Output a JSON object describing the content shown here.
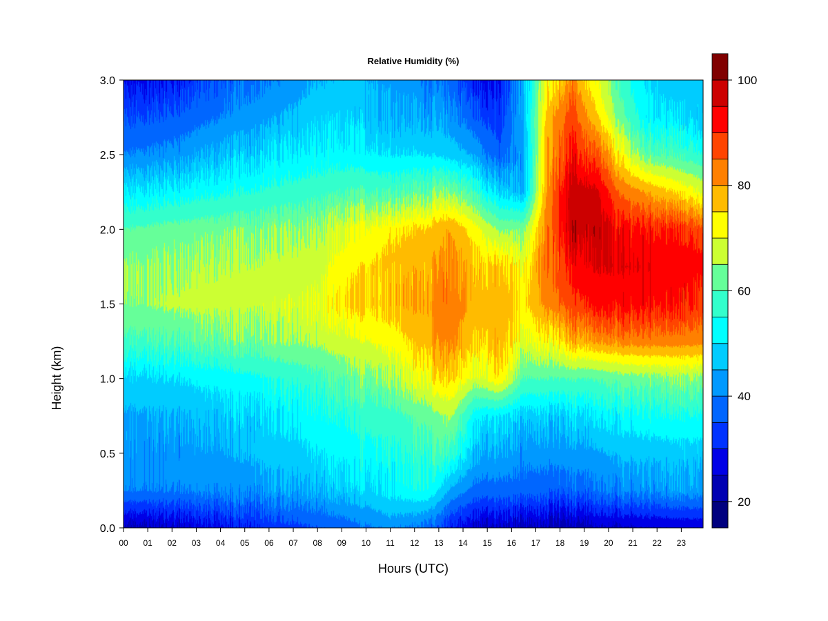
{
  "chart_data": {
    "type": "heatmap",
    "title": "Relative Humidity (%)",
    "xlabel": "Hours (UTC)",
    "ylabel": "Height (km)",
    "x_tick_labels": [
      "00",
      "01",
      "02",
      "03",
      "04",
      "05",
      "06",
      "07",
      "08",
      "09",
      "10",
      "11",
      "12",
      "13",
      "14",
      "15",
      "16",
      "17",
      "18",
      "19",
      "20",
      "21",
      "22",
      "23"
    ],
    "y_tick_labels": [
      "0.0",
      "0.5",
      "1.0",
      "1.5",
      "2.0",
      "2.5",
      "3.0"
    ],
    "xlim": [
      0,
      23.9
    ],
    "ylim": [
      0,
      3.0
    ],
    "colorbar": {
      "range": [
        15,
        100
      ],
      "tick_labels": [
        "20",
        "40",
        "60",
        "80",
        "100"
      ],
      "levels": [
        15,
        20,
        25,
        30,
        35,
        40,
        45,
        50,
        55,
        60,
        65,
        70,
        75,
        80,
        85,
        90,
        95,
        100
      ],
      "colors": [
        "#00007F",
        "#0000B2",
        "#0000E6",
        "#0033FF",
        "#0066FF",
        "#0099FF",
        "#00CCFF",
        "#00FFFF",
        "#33FFCC",
        "#66FF99",
        "#CCFF33",
        "#FFFF00",
        "#FFBB00",
        "#FF8000",
        "#FF4400",
        "#FF0000",
        "#CC0000",
        "#800000"
      ]
    },
    "heights_km": [
      0.0,
      0.25,
      0.5,
      0.75,
      1.0,
      1.25,
      1.5,
      1.75,
      2.0,
      2.25,
      2.5,
      2.75,
      3.0
    ],
    "hours_utc": [
      0,
      2,
      4,
      6,
      8,
      9.5,
      11,
      12.5,
      13.5,
      14.5,
      15.5,
      16.5,
      17.5,
      18.5,
      19.5,
      20.5,
      21.5,
      23.9
    ],
    "rh_percent": [
      [
        22,
        25,
        28,
        32,
        35,
        38,
        42,
        38,
        30,
        25,
        24,
        24,
        23,
        22,
        24,
        24,
        25,
        26
      ],
      [
        40,
        40,
        41,
        43,
        45,
        48,
        52,
        55,
        44,
        38,
        38,
        38,
        37,
        37,
        38,
        40,
        42,
        44
      ],
      [
        42,
        42,
        44,
        47,
        50,
        53,
        55,
        58,
        58,
        46,
        44,
        42,
        42,
        43,
        44,
        46,
        47,
        48
      ],
      [
        44,
        45,
        47,
        50,
        53,
        56,
        58,
        62,
        66,
        52,
        50,
        48,
        48,
        49,
        50,
        52,
        54,
        55
      ],
      [
        48,
        50,
        52,
        55,
        58,
        62,
        66,
        72,
        76,
        68,
        74,
        60,
        60,
        60,
        60,
        62,
        63,
        65
      ],
      [
        58,
        60,
        62,
        64,
        66,
        69,
        72,
        78,
        82,
        75,
        78,
        70,
        72,
        78,
        80,
        82,
        83,
        82
      ],
      [
        64,
        66,
        67,
        68,
        70,
        75,
        78,
        80,
        84,
        78,
        78,
        74,
        82,
        88,
        92,
        92,
        93,
        90
      ],
      [
        64,
        65,
        66,
        67,
        68,
        74,
        77,
        78,
        82,
        77,
        76,
        72,
        84,
        92,
        95,
        95,
        95,
        92
      ],
      [
        60,
        62,
        63,
        64,
        65,
        70,
        74,
        76,
        80,
        72,
        64,
        64,
        84,
        98,
        98,
        92,
        92,
        88
      ],
      [
        50,
        52,
        54,
        56,
        58,
        60,
        60,
        62,
        64,
        58,
        48,
        46,
        82,
        98,
        96,
        84,
        80,
        70
      ],
      [
        40,
        42,
        46,
        50,
        52,
        52,
        50,
        50,
        48,
        44,
        36,
        44,
        80,
        92,
        86,
        72,
        62,
        56
      ],
      [
        34,
        36,
        40,
        44,
        48,
        48,
        46,
        44,
        42,
        36,
        32,
        46,
        78,
        88,
        76,
        62,
        52,
        48
      ],
      [
        28,
        30,
        36,
        40,
        45,
        46,
        44,
        40,
        38,
        30,
        28,
        46,
        72,
        82,
        70,
        58,
        50,
        46
      ]
    ]
  }
}
